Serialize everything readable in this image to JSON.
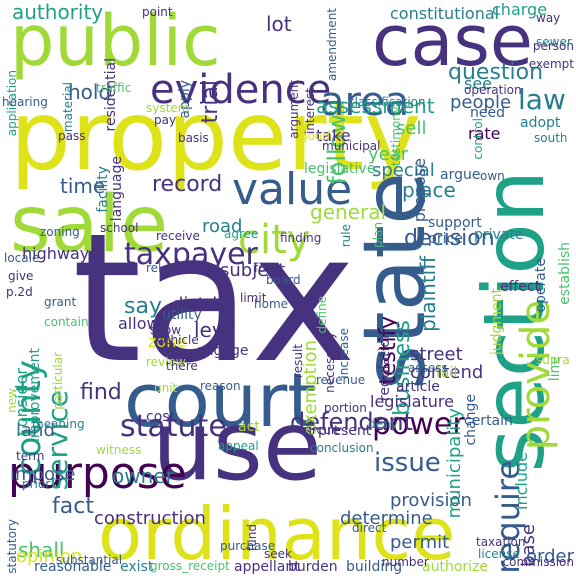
{
  "title": "",
  "palette": {
    "yellow": "#dde318",
    "lime": "#a0da39",
    "green": "#4ac16d",
    "teal": "#1fa187",
    "cyan": "#277f8e",
    "blue": "#365c8d",
    "indigo": "#46327e",
    "purple": "#440154"
  },
  "words": [
    {
      "text": "tax",
      "color": "indigo"
    },
    {
      "text": "property",
      "color": "yellow"
    },
    {
      "text": "court",
      "color": "blue"
    },
    {
      "text": "state",
      "color": "blue"
    },
    {
      "text": "public",
      "color": "lime"
    },
    {
      "text": "case",
      "color": "indigo"
    },
    {
      "text": "use",
      "color": "indigo"
    },
    {
      "text": "sale",
      "color": "lime"
    },
    {
      "text": "section",
      "color": "teal"
    },
    {
      "text": "ordinance",
      "color": "yellow"
    },
    {
      "text": "purpose",
      "color": "purple"
    },
    {
      "text": "value",
      "color": "blue"
    },
    {
      "text": "area",
      "color": "blue"
    },
    {
      "text": "evidence",
      "color": "indigo"
    },
    {
      "text": "provide",
      "color": "lime"
    },
    {
      "text": "county",
      "color": "teal"
    },
    {
      "text": "city",
      "color": "lime"
    },
    {
      "text": "require",
      "color": "blue"
    },
    {
      "text": "taxpayer",
      "color": "indigo"
    },
    {
      "text": "service",
      "color": "teal"
    },
    {
      "text": "statute",
      "color": "indigo"
    },
    {
      "text": "issue",
      "color": "blue"
    },
    {
      "text": "power",
      "color": "purple"
    },
    {
      "text": "law",
      "color": "cyan"
    },
    {
      "text": "question",
      "color": "cyan"
    },
    {
      "text": "follow",
      "color": "green"
    },
    {
      "text": "record",
      "color": "indigo"
    },
    {
      "text": "hold",
      "color": "blue"
    },
    {
      "text": "time",
      "color": "blue"
    },
    {
      "text": "say",
      "color": "cyan"
    },
    {
      "text": "find",
      "color": "indigo"
    },
    {
      "text": "defendant",
      "color": "indigo"
    },
    {
      "text": "fact",
      "color": "blue"
    },
    {
      "text": "owner",
      "color": "cyan"
    },
    {
      "text": "shall",
      "color": "green"
    },
    {
      "text": "land",
      "color": "blue"
    },
    {
      "text": "decision",
      "color": "blue"
    },
    {
      "text": "place",
      "color": "cyan"
    },
    {
      "text": "testify",
      "color": "purple"
    },
    {
      "text": "business",
      "color": "teal"
    },
    {
      "text": "plaintiff",
      "color": "cyan"
    },
    {
      "text": "general",
      "color": "lime"
    },
    {
      "text": "special",
      "color": "cyan"
    },
    {
      "text": "year",
      "color": "green"
    },
    {
      "text": "sell",
      "color": "green"
    },
    {
      "text": "assessment",
      "color": "teal"
    },
    {
      "text": "people",
      "color": "blue"
    },
    {
      "text": "see",
      "color": "cyan"
    },
    {
      "text": "charge",
      "color": "teal"
    },
    {
      "text": "authority",
      "color": "teal"
    },
    {
      "text": "lot",
      "color": "indigo"
    },
    {
      "text": "trial",
      "color": "indigo"
    },
    {
      "text": "apply",
      "color": "blue"
    },
    {
      "text": "road",
      "color": "cyan"
    },
    {
      "text": "highway",
      "color": "indigo"
    },
    {
      "text": "subject",
      "color": "indigo"
    },
    {
      "text": "district",
      "color": "indigo"
    },
    {
      "text": "levy",
      "color": "indigo"
    },
    {
      "text": "exemption",
      "color": "lime"
    },
    {
      "text": "zone",
      "color": "yellow"
    },
    {
      "text": "consider",
      "color": "teal"
    },
    {
      "text": "improvement",
      "color": "teal"
    },
    {
      "text": "construction",
      "color": "indigo"
    },
    {
      "text": "determine",
      "color": "blue"
    },
    {
      "text": "permit",
      "color": "blue"
    },
    {
      "text": "provision",
      "color": "blue"
    },
    {
      "text": "municipality",
      "color": "teal"
    },
    {
      "text": "include",
      "color": "teal"
    },
    {
      "text": "opinion",
      "color": "yellow"
    },
    {
      "text": "contend",
      "color": "indigo"
    },
    {
      "text": "street",
      "color": "indigo"
    },
    {
      "text": "establish",
      "color": "green"
    },
    {
      "text": "legislature",
      "color": "indigo"
    },
    {
      "text": "regulation",
      "color": "indigo"
    },
    {
      "text": "base",
      "color": "indigo"
    },
    {
      "text": "line",
      "color": "green"
    },
    {
      "text": "propose",
      "color": "blue"
    },
    {
      "text": "order",
      "color": "blue"
    },
    {
      "text": "argue",
      "color": "blue"
    },
    {
      "text": "rate",
      "color": "purple"
    },
    {
      "text": "adopt",
      "color": "cyan"
    },
    {
      "text": "need",
      "color": "blue"
    },
    {
      "text": "take",
      "color": "indigo"
    },
    {
      "text": "operate",
      "color": "blue"
    },
    {
      "text": "support",
      "color": "blue"
    },
    {
      "text": "price",
      "color": "blue"
    },
    {
      "text": "private",
      "color": "cyan"
    },
    {
      "text": "effect",
      "color": "indigo"
    },
    {
      "text": "judgment",
      "color": "lime"
    },
    {
      "text": "utility",
      "color": "blue"
    },
    {
      "text": "allow",
      "color": "indigo"
    },
    {
      "text": "engage",
      "color": "indigo"
    },
    {
      "text": "reason",
      "color": "blue"
    },
    {
      "text": "revenue",
      "color": "blue"
    },
    {
      "text": "portion",
      "color": "indigo"
    },
    {
      "text": "present",
      "color": "indigo"
    },
    {
      "text": "conclusion",
      "color": "cyan"
    },
    {
      "text": "cost",
      "color": "indigo"
    },
    {
      "text": "act",
      "color": "lime"
    },
    {
      "text": "appeal",
      "color": "teal"
    },
    {
      "text": "impose",
      "color": "blue"
    },
    {
      "text": "term",
      "color": "indigo"
    },
    {
      "text": "witness",
      "color": "lime"
    },
    {
      "text": "prior",
      "color": "cyan"
    },
    {
      "text": "statutory",
      "color": "blue"
    },
    {
      "text": "reasonable",
      "color": "blue"
    },
    {
      "text": "exist",
      "color": "cyan"
    },
    {
      "text": "gross_receipt",
      "color": "green"
    },
    {
      "text": "appellant",
      "color": "indigo"
    },
    {
      "text": "burden",
      "color": "indigo"
    },
    {
      "text": "building",
      "color": "blue"
    },
    {
      "text": "authorize",
      "color": "lime"
    },
    {
      "text": "purchase",
      "color": "blue"
    },
    {
      "text": "number",
      "color": "indigo"
    },
    {
      "text": "seek",
      "color": "indigo"
    },
    {
      "text": "license",
      "color": "cyan"
    },
    {
      "text": "taxation",
      "color": "indigo"
    },
    {
      "text": "commission",
      "color": "indigo"
    },
    {
      "text": "certain",
      "color": "blue"
    },
    {
      "text": "deny",
      "color": "cyan"
    },
    {
      "text": "change",
      "color": "blue"
    },
    {
      "text": "article",
      "color": "indigo"
    },
    {
      "text": "fail",
      "color": "lime"
    },
    {
      "text": "circuit",
      "color": "indigo"
    },
    {
      "text": "result",
      "color": "indigo"
    },
    {
      "text": "necessary",
      "color": "indigo"
    },
    {
      "text": "increase",
      "color": "blue"
    },
    {
      "text": "define",
      "color": "green"
    },
    {
      "text": "residential",
      "color": "indigo"
    },
    {
      "text": "traffic",
      "color": "green"
    },
    {
      "text": "application",
      "color": "teal"
    },
    {
      "text": "material",
      "color": "cyan"
    },
    {
      "text": "hearing",
      "color": "blue"
    },
    {
      "text": "pass",
      "color": "indigo"
    },
    {
      "text": "facility",
      "color": "cyan"
    },
    {
      "text": "language",
      "color": "indigo"
    },
    {
      "text": "system",
      "color": "lime"
    },
    {
      "text": "pay",
      "color": "indigo"
    },
    {
      "text": "basis",
      "color": "indigo"
    },
    {
      "text": "municipal",
      "color": "indigo"
    },
    {
      "text": "legislative",
      "color": "green"
    },
    {
      "text": "testimony",
      "color": "green"
    },
    {
      "text": "constitutional",
      "color": "cyan"
    },
    {
      "text": "own",
      "color": "blue"
    },
    {
      "text": "classification",
      "color": "cyan"
    },
    {
      "text": "interest",
      "color": "indigo"
    },
    {
      "text": "argument",
      "color": "indigo"
    },
    {
      "text": "amendment",
      "color": "blue"
    },
    {
      "text": "operation",
      "color": "indigo"
    },
    {
      "text": "control",
      "color": "teal"
    },
    {
      "text": "person",
      "color": "indigo"
    },
    {
      "text": "exempt",
      "color": "indigo"
    },
    {
      "text": "way",
      "color": "indigo"
    },
    {
      "text": "sewer",
      "color": "cyan"
    },
    {
      "text": "point",
      "color": "indigo"
    },
    {
      "text": "south",
      "color": "cyan"
    },
    {
      "text": "good",
      "color": "yellow"
    },
    {
      "text": "receive",
      "color": "indigo"
    },
    {
      "text": "agree",
      "color": "teal"
    },
    {
      "text": "finding",
      "color": "indigo"
    },
    {
      "text": "rule",
      "color": "cyan"
    },
    {
      "text": "foot",
      "color": "indigo"
    },
    {
      "text": "board",
      "color": "blue"
    },
    {
      "text": "limit",
      "color": "indigo"
    },
    {
      "text": "home",
      "color": "blue"
    },
    {
      "text": "plan",
      "color": "green"
    },
    {
      "text": "school",
      "color": "indigo"
    },
    {
      "text": "rel",
      "color": "blue"
    },
    {
      "text": "zoning",
      "color": "blue"
    },
    {
      "text": "locale",
      "color": "blue"
    },
    {
      "text": "give",
      "color": "indigo"
    },
    {
      "text": "p.2d",
      "color": "indigo"
    },
    {
      "text": "grant",
      "color": "blue"
    },
    {
      "text": "contain",
      "color": "green"
    },
    {
      "text": "show",
      "color": "indigo"
    },
    {
      "text": "vehicle",
      "color": "indigo"
    },
    {
      "text": "review",
      "color": "lime"
    },
    {
      "text": "unit",
      "color": "lime"
    },
    {
      "text": "there",
      "color": "indigo"
    },
    {
      "text": "new",
      "color": "lime"
    },
    {
      "text": "meaning",
      "color": "cyan"
    },
    {
      "text": "particular",
      "color": "lime"
    },
    {
      "text": "substantial",
      "color": "blue"
    },
    {
      "text": "direct",
      "color": "blue"
    },
    {
      "text": "fund",
      "color": "indigo"
    },
    {
      "text": "assess",
      "color": "blue"
    },
    {
      "text": "supra",
      "color": "lime"
    },
    {
      "text": "man",
      "color": "blue"
    }
  ]
}
